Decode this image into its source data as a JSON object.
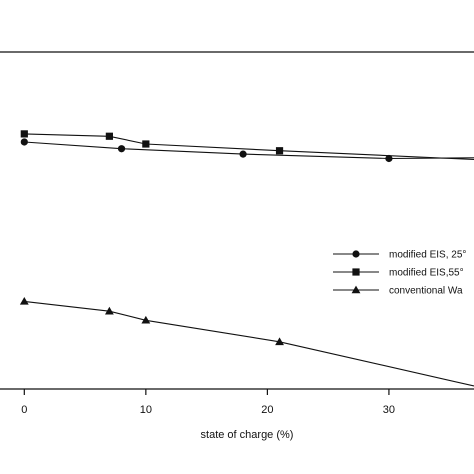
{
  "chart_data": {
    "type": "line",
    "title": "",
    "xlabel": "state of charge (%)",
    "ylabel": "",
    "xlim": [
      -2,
      37
    ],
    "ylim": [
      0,
      1
    ],
    "xticks": [
      "0",
      "10",
      "20",
      "30"
    ],
    "grid": false,
    "legend_position": "right",
    "series": [
      {
        "name": "modified EIS, 25°",
        "marker": "circle",
        "x": [
          0,
          8,
          18,
          30,
          37
        ],
        "y": [
          0.733,
          0.713,
          0.697,
          0.684,
          0.686
        ]
      },
      {
        "name": "modified EIS,55°",
        "marker": "square",
        "x": [
          0,
          7,
          10,
          21,
          37
        ],
        "y": [
          0.757,
          0.75,
          0.727,
          0.707,
          0.681
        ]
      },
      {
        "name": "conventional Wa",
        "marker": "triangle",
        "x": [
          0,
          7,
          10,
          21,
          37
        ],
        "y": [
          0.26,
          0.231,
          0.204,
          0.14,
          0.009
        ]
      }
    ]
  }
}
